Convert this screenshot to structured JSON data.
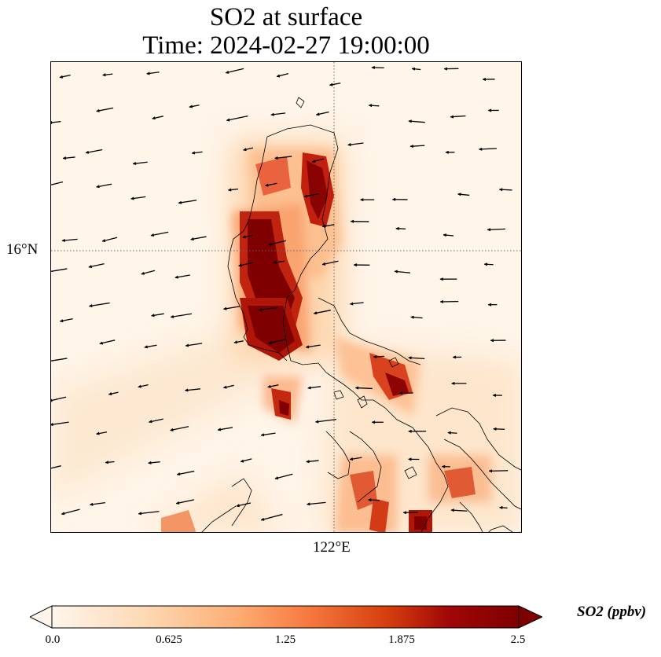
{
  "title": {
    "line1": "SO2 at surface",
    "line2": "Time: 2024-02-27 19:00:00"
  },
  "axes": {
    "lat_label": "16°N",
    "lon_label": "122°E",
    "lat_line": 16,
    "lon_line": 122
  },
  "colorbar": {
    "title": "SO2 (ppbv)",
    "ticks": [
      "0.0",
      "0.625",
      "1.25",
      "1.875",
      "2.5"
    ],
    "min": 0.0,
    "max": 2.5,
    "colors": [
      "#fff5eb",
      "#fdd9b4",
      "#fdac72",
      "#f6783f",
      "#d53e0f",
      "#a00707",
      "#7f0000"
    ]
  },
  "chart_data": {
    "type": "heatmap",
    "variable": "SO2",
    "units": "ppbv",
    "hotspots": [
      {
        "lat": 16.6,
        "lon": 121.9,
        "value": 2.0
      },
      {
        "lat": 16.3,
        "lon": 121.5,
        "value": 2.2
      },
      {
        "lat": 15.6,
        "lon": 121.6,
        "value": 2.5
      },
      {
        "lat": 14.6,
        "lon": 122.5,
        "value": 1.9
      },
      {
        "lat": 14.0,
        "lon": 121.2,
        "value": 2.2
      },
      {
        "lat": 12.4,
        "lon": 122.9,
        "value": 2.4
      }
    ],
    "wind_vectors": true
  }
}
